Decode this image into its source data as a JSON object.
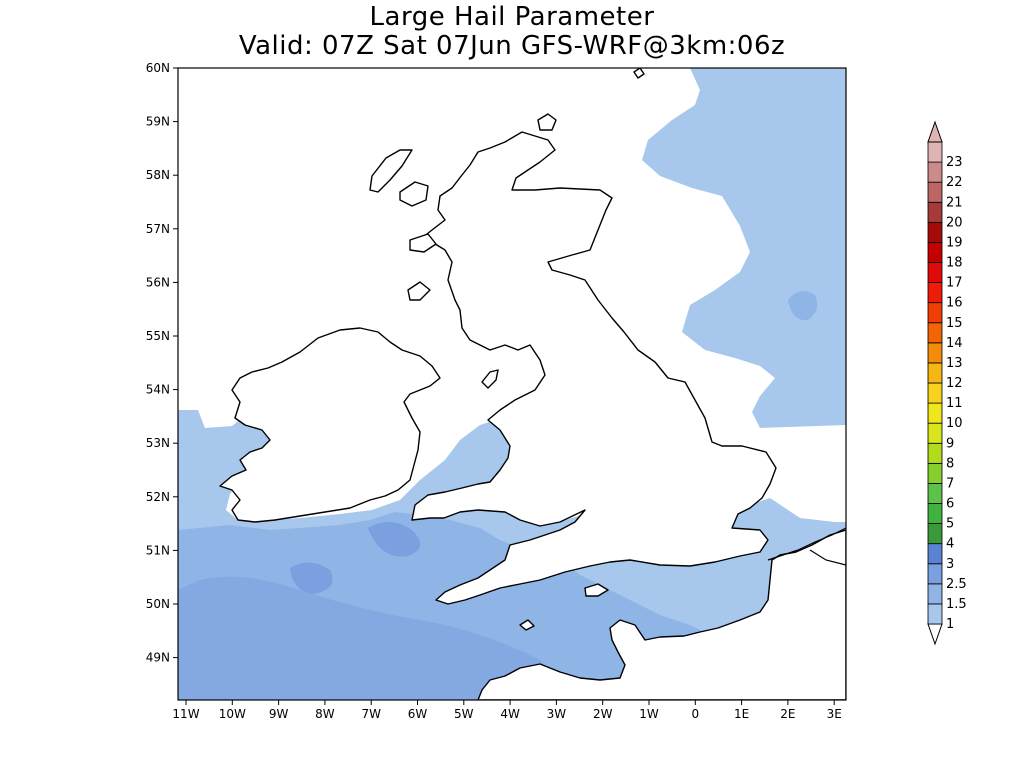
{
  "title": {
    "line1": "Large Hail Parameter",
    "line2": "Valid: 07Z Sat 07Jun GFS-WRF@3km:06z"
  },
  "map": {
    "lon_range": [
      -11.2,
      3.2
    ],
    "lat_range": [
      48.2,
      60
    ],
    "x_ticks": [
      "11W",
      "10W",
      "9W",
      "8W",
      "7W",
      "6W",
      "5W",
      "4W",
      "3W",
      "2W",
      "1W",
      "0",
      "1E",
      "2E",
      "3E"
    ],
    "y_ticks": [
      "60N",
      "59N",
      "58N",
      "57N",
      "56N",
      "55N",
      "54N",
      "53N",
      "52N",
      "51N",
      "50N",
      "49N"
    ]
  },
  "colorbar": {
    "labels": [
      "1",
      "1.5",
      "2.5",
      "3",
      "4",
      "5",
      "6",
      "7",
      "8",
      "9",
      "10",
      "11",
      "12",
      "13",
      "14",
      "15",
      "16",
      "17",
      "18",
      "19",
      "20",
      "21",
      "22",
      "23"
    ],
    "colors": [
      "#a7c8ec",
      "#8fb4e6",
      "#7ba0df",
      "#5b82d4",
      "#3a9a3a",
      "#3fb23f",
      "#5ec24a",
      "#86cf2d",
      "#b2dc1b",
      "#d9e61e",
      "#f0e61c",
      "#f8d21e",
      "#f6b613",
      "#f28c0a",
      "#f26506",
      "#f03e05",
      "#f01c0a",
      "#e00a0a",
      "#c40000",
      "#a50a0a",
      "#a63a3a",
      "#bc6666",
      "#cd8a8a",
      "#dfb4b4"
    ]
  },
  "legend_colors": {
    "shade_1": "#a7c8ec",
    "shade_1_5": "#8fb4e6",
    "shade_2_5": "#7ba0df",
    "coast": "#000000"
  }
}
